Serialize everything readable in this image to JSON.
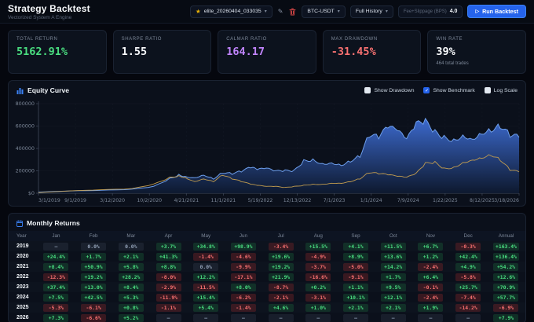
{
  "header": {
    "title": "Strategy Backtest",
    "subtitle": "Vectorized System A Engine",
    "strategy_name": "elite_20260404_033035",
    "pair_select": "BTC-USDT",
    "range_select": "Full History",
    "fee_label": "Fee+Slippage (BPS)",
    "fee_value": "4.0",
    "run_button": "Run Backtest"
  },
  "stats": [
    {
      "label": "TOTAL RETURN",
      "value": "5162.91%",
      "color": "#4ade80",
      "sub": ""
    },
    {
      "label": "SHARPE RATIO",
      "value": "1.55",
      "color": "#f8fafc",
      "sub": ""
    },
    {
      "label": "CALMAR RATIO",
      "value": "164.17",
      "color": "#c084fc",
      "sub": ""
    },
    {
      "label": "MAX DRAWDOWN",
      "value": "-31.45%",
      "color": "#f87171",
      "sub": ""
    },
    {
      "label": "WIN RATE",
      "value": "39%",
      "color": "#f8fafc",
      "sub": "464 total trades"
    }
  ],
  "equity_panel": {
    "title": "Equity Curve",
    "toggles": [
      {
        "label": "Show Drawdown",
        "checked": false
      },
      {
        "label": "Show Benchmark",
        "checked": true
      },
      {
        "label": "Log Scale",
        "checked": false
      }
    ]
  },
  "chart_data": {
    "type": "area",
    "title": "Equity Curve",
    "xlabel": "",
    "ylabel": "",
    "ylim": [
      0,
      800000
    ],
    "y_ticks": [
      {
        "value": 0,
        "label": "$0"
      },
      {
        "value": 200000,
        "label": "200000"
      },
      {
        "value": 400000,
        "label": "400000"
      },
      {
        "value": 600000,
        "label": "600000"
      },
      {
        "value": 800000,
        "label": "800000"
      }
    ],
    "x_tick_labels": [
      "3/1/2019",
      "9/1/2019",
      "3/12/2020",
      "10/2/2020",
      "4/21/2021",
      "11/1/2021",
      "5/19/2022",
      "12/13/2022",
      "7/1/2023",
      "1/1/2024",
      "7/9/2024",
      "1/22/2025",
      "8/12/2025",
      "3/18/2026"
    ],
    "grid": true,
    "legend_position": "none",
    "x": [
      0,
      0.065,
      0.13,
      0.195,
      0.24,
      0.273,
      0.292,
      0.305,
      0.325,
      0.344,
      0.364,
      0.383,
      0.403,
      0.422,
      0.442,
      0.455,
      0.474,
      0.494,
      0.513,
      0.532,
      0.552,
      0.571,
      0.591,
      0.61,
      0.63,
      0.649,
      0.669,
      0.688,
      0.708,
      0.727,
      0.747,
      0.766,
      0.786,
      0.805,
      0.825,
      0.844,
      0.864,
      0.883,
      0.903,
      0.922,
      0.942,
      0.961,
      0.981,
      1.0
    ],
    "series": [
      {
        "name": "Equity",
        "style": "area",
        "color": "#6d9eeb",
        "fill_top": "#3f6fd8",
        "fill_bottom": "#0e1a31",
        "values": [
          10000,
          20000,
          25000,
          35000,
          60000,
          130000,
          165000,
          150000,
          140000,
          165000,
          130000,
          185000,
          175000,
          195000,
          230000,
          210000,
          220000,
          195000,
          200000,
          200000,
          290000,
          300000,
          265000,
          275000,
          255000,
          290000,
          335000,
          520000,
          500000,
          590000,
          555000,
          475000,
          615000,
          640000,
          545000,
          500000,
          475000,
          520000,
          490000,
          545000,
          570000,
          605000,
          520000,
          500000
        ]
      },
      {
        "name": "Benchmark",
        "style": "line",
        "color": "#c9a14f",
        "values": [
          5000,
          20000,
          30000,
          40000,
          80000,
          140000,
          155000,
          140000,
          105000,
          130000,
          105000,
          165000,
          130000,
          105000,
          80000,
          70000,
          60000,
          60000,
          50000,
          60000,
          70000,
          80000,
          80000,
          90000,
          90000,
          105000,
          130000,
          185000,
          175000,
          165000,
          150000,
          140000,
          175000,
          265000,
          275000,
          220000,
          230000,
          275000,
          300000,
          320000,
          345000,
          300000,
          210000,
          190000
        ]
      }
    ]
  },
  "monthly": {
    "title": "Monthly Returns",
    "columns": [
      "Year",
      "Jan",
      "Feb",
      "Mar",
      "Apr",
      "May",
      "Jun",
      "Jul",
      "Aug",
      "Sep",
      "Oct",
      "Nov",
      "Dec",
      "Annual"
    ],
    "rows": [
      {
        "year": "2019",
        "cells": [
          "–",
          "0.0%",
          "0.0%",
          "+3.7%",
          "+34.8%",
          "+98.9%",
          "-3.4%",
          "+15.5%",
          "+4.1%",
          "+11.5%",
          "+6.7%",
          "-0.3%",
          "+163.4%"
        ]
      },
      {
        "year": "2020",
        "cells": [
          "+24.4%",
          "+1.7%",
          "+2.1%",
          "+41.3%",
          "-1.4%",
          "-4.6%",
          "+19.6%",
          "-4.9%",
          "+8.9%",
          "+13.6%",
          "+1.2%",
          "+42.4%",
          "+136.4%"
        ]
      },
      {
        "year": "2021",
        "cells": [
          "+8.4%",
          "+50.9%",
          "+5.8%",
          "+8.8%",
          "0.0%",
          "-9.9%",
          "+19.2%",
          "-3.7%",
          "-5.0%",
          "+14.2%",
          "-2.4%",
          "+4.9%",
          "+54.2%"
        ]
      },
      {
        "year": "2022",
        "cells": [
          "-12.3%",
          "+19.2%",
          "+28.2%",
          "-8.0%",
          "+12.2%",
          "-17.1%",
          "+21.9%",
          "-16.6%",
          "-9.1%",
          "+1.7%",
          "+6.4%",
          "-5.8%",
          "+12.6%"
        ]
      },
      {
        "year": "2023",
        "cells": [
          "+37.4%",
          "+13.0%",
          "+8.4%",
          "-2.9%",
          "-11.5%",
          "+8.0%",
          "-8.7%",
          "+0.2%",
          "+1.1%",
          "+9.5%",
          "-0.1%",
          "+25.7%",
          "+70.9%"
        ]
      },
      {
        "year": "2024",
        "cells": [
          "+7.5%",
          "+42.5%",
          "+5.3%",
          "-11.9%",
          "+15.4%",
          "-6.2%",
          "-2.1%",
          "-3.1%",
          "+10.1%",
          "+12.1%",
          "-2.4%",
          "-7.4%",
          "+57.7%"
        ]
      },
      {
        "year": "2025",
        "cells": [
          "-5.3%",
          "-6.1%",
          "+0.8%",
          "-1.1%",
          "+5.4%",
          "-1.4%",
          "+4.6%",
          "+1.0%",
          "+2.1%",
          "+2.1%",
          "+1.9%",
          "-14.2%",
          "-6.9%"
        ]
      },
      {
        "year": "2026",
        "cells": [
          "+7.3%",
          "-6.6%",
          "+5.2%",
          "–",
          "–",
          "–",
          "–",
          "–",
          "–",
          "–",
          "–",
          "–",
          "+7.9%"
        ]
      }
    ]
  }
}
